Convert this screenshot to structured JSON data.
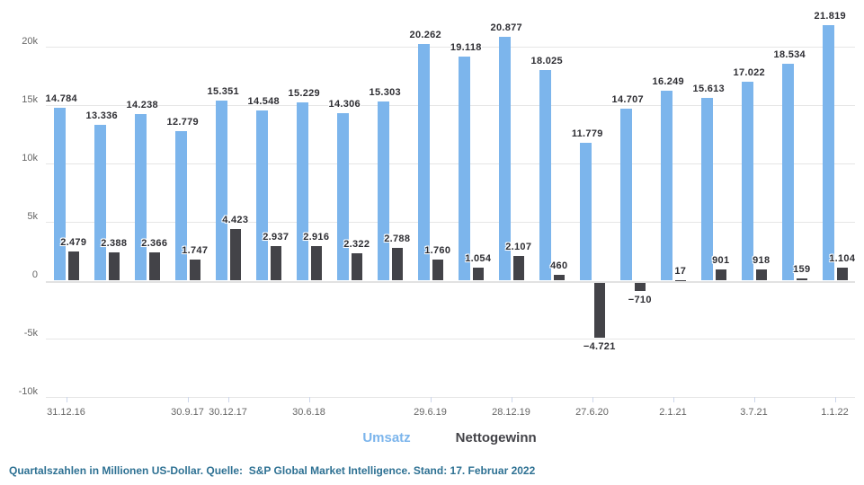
{
  "chart_data": {
    "type": "bar",
    "title": "",
    "unit": "Millionen US-Dollar",
    "group_count": 20,
    "grid": true,
    "legend_position": "bottom",
    "ylim": [
      -10000,
      23000
    ],
    "y_ticks": [
      {
        "value": 20000,
        "label": "20k"
      },
      {
        "value": 15000,
        "label": "15k"
      },
      {
        "value": 10000,
        "label": "10k"
      },
      {
        "value": 5000,
        "label": "5k"
      },
      {
        "value": 0,
        "label": "0"
      },
      {
        "value": -5000,
        "label": "-5k"
      },
      {
        "value": -10000,
        "label": "-10k"
      }
    ],
    "x_ticks": [
      {
        "index": 0,
        "label": "31.12.16"
      },
      {
        "index": 3,
        "label": "30.9.17"
      },
      {
        "index": 4,
        "label": "30.12.17"
      },
      {
        "index": 6,
        "label": "30.6.18"
      },
      {
        "index": 9,
        "label": "29.6.19"
      },
      {
        "index": 11,
        "label": "28.12.19"
      },
      {
        "index": 13,
        "label": "27.6.20"
      },
      {
        "index": 15,
        "label": "2.1.21"
      },
      {
        "index": 17,
        "label": "3.7.21"
      },
      {
        "index": 19,
        "label": "1.1.22"
      }
    ],
    "series": [
      {
        "name": "Umsatz",
        "color": "#7cb5ec",
        "values": [
          14784,
          13336,
          14238,
          12779,
          15351,
          14548,
          15229,
          14306,
          15303,
          20262,
          19118,
          20877,
          18025,
          11779,
          14707,
          16249,
          15613,
          17022,
          18534,
          21819
        ],
        "labels": [
          "14.784",
          "13.336",
          "14.238",
          "12.779",
          "15.351",
          "14.548",
          "15.229",
          "14.306",
          "15.303",
          "20.262",
          "19.118",
          "20.877",
          "18.025",
          "11.779",
          "14.707",
          "16.249",
          "15.613",
          "17.022",
          "18.534",
          "21.819"
        ]
      },
      {
        "name": "Nettogewinn",
        "color": "#434348",
        "values": [
          2479,
          2388,
          2366,
          1747,
          4423,
          2937,
          2916,
          2322,
          2788,
          1760,
          1054,
          2107,
          460,
          -4721,
          -710,
          17,
          901,
          918,
          159,
          1104
        ],
        "labels": [
          "2.479",
          "2.388",
          "2.366",
          "1.747",
          "4.423",
          "2.937",
          "2.916",
          "2.322",
          "2.788",
          "1.760",
          "1.054",
          "2.107",
          "460",
          "−4.721",
          "−710",
          "17",
          "901",
          "918",
          "159",
          "1.104"
        ]
      }
    ]
  },
  "footer": {
    "text": "Quartalszahlen in Millionen US-Dollar. Quelle:  S&P Global Market Intelligence. Stand: 17. Februar 2022",
    "color": "#2e7193"
  }
}
